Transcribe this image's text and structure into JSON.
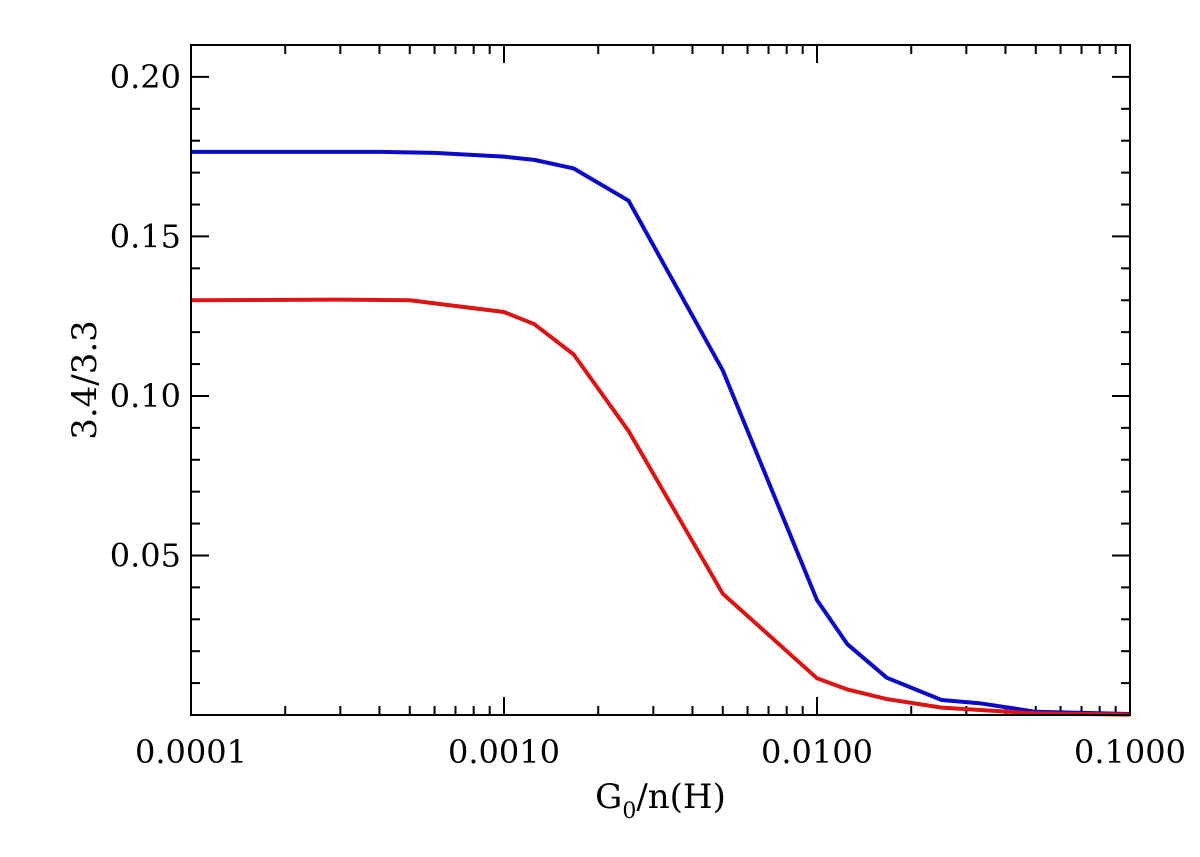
{
  "chart_data": {
    "type": "line",
    "xscale": "log",
    "xlim": [
      0.0001,
      0.1
    ],
    "ylim": [
      0.0,
      0.21
    ],
    "xlabel": {
      "main": "G",
      "subscript": "0",
      "rest": "/n(H)"
    },
    "ylabel": "3.4/3.3",
    "x_tick_labels": [
      {
        "value": 0.0001,
        "label": "0.0001"
      },
      {
        "value": 0.001,
        "label": "0.0010"
      },
      {
        "value": 0.01,
        "label": "0.0100"
      },
      {
        "value": 0.1,
        "label": "0.1000"
      }
    ],
    "y_tick_labels": [
      {
        "value": 0.05,
        "label": "0.05"
      },
      {
        "value": 0.1,
        "label": "0.10"
      },
      {
        "value": 0.15,
        "label": "0.15"
      },
      {
        "value": 0.2,
        "label": "0.20"
      }
    ],
    "y_minor_step": 0.01,
    "series": [
      {
        "name": "blue curve",
        "color": "#0a0ac8",
        "x": [
          0.0001,
          0.0002,
          0.0004,
          0.0006,
          0.001,
          0.00125,
          0.00167,
          0.0025,
          0.005,
          0.01,
          0.0125,
          0.0167,
          0.025,
          0.033,
          0.05,
          0.1
        ],
        "y": [
          0.1765,
          0.1765,
          0.1765,
          0.1762,
          0.175,
          0.174,
          0.1713,
          0.1612,
          0.108,
          0.036,
          0.0222,
          0.0117,
          0.0047,
          0.0037,
          0.001,
          0.0003
        ]
      },
      {
        "name": "red curve",
        "color": "#dc1414",
        "x": [
          0.0001,
          0.0003,
          0.0005,
          0.001,
          0.00125,
          0.00167,
          0.0025,
          0.005,
          0.01,
          0.0125,
          0.0167,
          0.025,
          0.05,
          0.1
        ],
        "y": [
          0.13,
          0.1302,
          0.13,
          0.1263,
          0.1225,
          0.113,
          0.089,
          0.038,
          0.0115,
          0.008,
          0.005,
          0.0023,
          0.0005,
          0.0001
        ]
      }
    ]
  }
}
